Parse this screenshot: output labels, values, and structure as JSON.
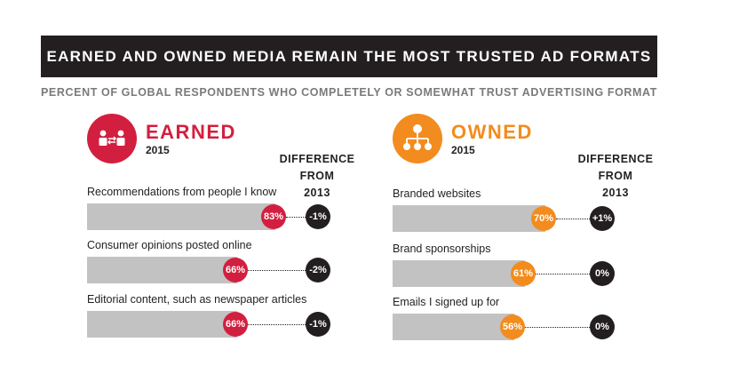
{
  "title": "EARNED AND OWNED MEDIA REMAIN THE MOST TRUSTED AD FORMATS",
  "subtitle": "PERCENT OF GLOBAL RESPONDENTS WHO COMPLETELY OR SOMEWHAT TRUST ADVERTISING FORMAT",
  "colors": {
    "earned": "#d31f3f",
    "owned": "#f28c1e",
    "bar": "#c2c2c2",
    "dark": "#231f20"
  },
  "chart_data": [
    {
      "type": "bar",
      "title": "EARNED",
      "subtitle": "2015",
      "icon": "people-exchange-icon",
      "diff_header": [
        "DIFFERENCE",
        "FROM",
        "2013"
      ],
      "categories": [
        "Recommendations from people I know",
        "Consumer opinions posted online",
        "Editorial content, such as newspaper articles"
      ],
      "values": [
        83,
        66,
        66
      ],
      "value_labels": [
        "83%",
        "66%",
        "66%"
      ],
      "difference": [
        "-1%",
        "-2%",
        "-1%"
      ],
      "ylim": [
        0,
        100
      ]
    },
    {
      "type": "bar",
      "title": "OWNED",
      "subtitle": "2015",
      "icon": "org-chart-icon",
      "diff_header": [
        "DIFFERENCE",
        "FROM",
        "2013"
      ],
      "categories": [
        "Branded websites",
        "Brand sponsorships",
        "Emails I signed up for"
      ],
      "values": [
        70,
        61,
        56
      ],
      "value_labels": [
        "70%",
        "61%",
        "56%"
      ],
      "difference": [
        "+1%",
        "0%",
        "0%"
      ],
      "ylim": [
        0,
        100
      ]
    }
  ]
}
